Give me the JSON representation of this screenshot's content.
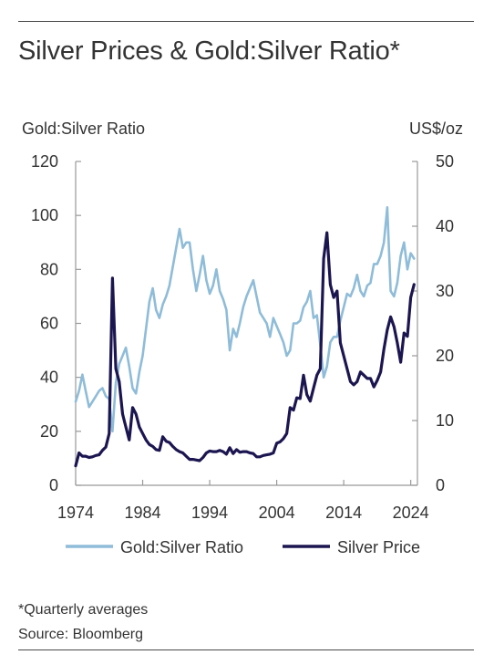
{
  "header": {
    "title": "Silver Prices & Gold:Silver Ratio*"
  },
  "footer": {
    "note": "*Quarterly averages",
    "source": "Source: Bloomberg"
  },
  "colors": {
    "ratio": "#8fbcd8",
    "price": "#1c1650",
    "axis": "#999999",
    "text": "#333333"
  },
  "chart_data": {
    "type": "line",
    "title": "Silver Prices & Gold:Silver Ratio*",
    "left_axis": {
      "label": "Gold:Silver Ratio",
      "range": [
        0,
        120
      ],
      "ticks": [
        "0",
        "20",
        "40",
        "60",
        "80",
        "100",
        "120"
      ]
    },
    "right_axis": {
      "label": "US$/oz",
      "range": [
        0,
        50
      ],
      "ticks": [
        "0",
        "10",
        "20",
        "30",
        "40",
        "50"
      ]
    },
    "x_axis": {
      "range": [
        1974,
        2025
      ],
      "ticks": [
        "1974",
        "1984",
        "1994",
        "2004",
        "2014",
        "2024"
      ]
    },
    "grid": false,
    "legend": {
      "placement": "bottom",
      "entries": [
        "Gold:Silver Ratio",
        "Silver Price"
      ]
    },
    "series": [
      {
        "name": "Gold:Silver Ratio",
        "axis": "left",
        "x": [
          1974,
          1974.5,
          1975,
          1975.5,
          1976,
          1976.5,
          1977,
          1977.5,
          1978,
          1978.5,
          1979,
          1979.5,
          1980,
          1980.5,
          1981,
          1981.5,
          1982,
          1982.5,
          1983,
          1983.5,
          1984,
          1984.5,
          1985,
          1985.5,
          1986,
          1986.5,
          1987,
          1987.5,
          1988,
          1988.5,
          1989,
          1989.5,
          1990,
          1990.5,
          1991,
          1991.5,
          1992,
          1992.5,
          1993,
          1993.5,
          1994,
          1994.5,
          1995,
          1995.5,
          1996,
          1996.5,
          1997,
          1997.5,
          1998,
          1998.5,
          1999,
          1999.5,
          2000,
          2000.5,
          2001,
          2001.5,
          2002,
          2002.5,
          2003,
          2003.5,
          2004,
          2004.5,
          2005,
          2005.5,
          2006,
          2006.5,
          2007,
          2007.5,
          2008,
          2008.5,
          2009,
          2009.5,
          2010,
          2010.5,
          2011,
          2011.5,
          2012,
          2012.5,
          2013,
          2013.5,
          2014,
          2014.5,
          2015,
          2015.5,
          2016,
          2016.5,
          2017,
          2017.5,
          2018,
          2018.5,
          2019,
          2019.5,
          2020,
          2020.5,
          2021,
          2021.5,
          2022,
          2022.5,
          2023,
          2023.5,
          2024,
          2024.5
        ],
        "values": [
          31,
          35,
          41,
          35,
          29,
          31,
          33,
          35,
          36,
          33,
          32,
          20,
          38,
          45,
          48,
          51,
          44,
          36,
          34,
          42,
          48,
          58,
          68,
          73,
          65,
          62,
          67,
          70,
          74,
          81,
          88,
          95,
          88,
          90,
          90,
          80,
          72,
          78,
          85,
          76,
          71,
          74,
          80,
          72,
          69,
          65,
          50,
          58,
          55,
          60,
          66,
          70,
          73,
          76,
          70,
          64,
          62,
          60,
          55,
          62,
          59,
          56,
          53,
          48,
          50,
          60,
          60,
          61,
          66,
          68,
          72,
          62,
          63,
          52,
          40,
          44,
          53,
          55,
          55,
          61,
          66,
          71,
          70,
          73,
          78,
          72,
          70,
          74,
          75,
          82,
          82,
          85,
          90,
          103,
          72,
          70,
          75,
          85,
          90,
          80,
          86,
          84
        ]
      },
      {
        "name": "Silver Price",
        "axis": "right",
        "x": [
          1974,
          1974.5,
          1975,
          1975.5,
          1976,
          1976.5,
          1977,
          1977.5,
          1978,
          1978.5,
          1979,
          1979.5,
          1980,
          1980.5,
          1981,
          1981.5,
          1982,
          1982.5,
          1983,
          1983.5,
          1984,
          1984.5,
          1985,
          1985.5,
          1986,
          1986.5,
          1987,
          1987.5,
          1988,
          1988.5,
          1989,
          1989.5,
          1990,
          1990.5,
          1991,
          1991.5,
          1992,
          1992.5,
          1993,
          1993.5,
          1994,
          1994.5,
          1995,
          1995.5,
          1996,
          1996.5,
          1997,
          1997.5,
          1998,
          1998.5,
          1999,
          1999.5,
          2000,
          2000.5,
          2001,
          2001.5,
          2002,
          2002.5,
          2003,
          2003.5,
          2004,
          2004.5,
          2005,
          2005.5,
          2006,
          2006.5,
          2007,
          2007.5,
          2008,
          2008.5,
          2009,
          2009.5,
          2010,
          2010.5,
          2011,
          2011.5,
          2012,
          2012.5,
          2013,
          2013.5,
          2014,
          2014.5,
          2015,
          2015.5,
          2016,
          2016.5,
          2017,
          2017.5,
          2018,
          2018.5,
          2019,
          2019.5,
          2020,
          2020.5,
          2021,
          2021.5,
          2022,
          2022.5,
          2023,
          2023.5,
          2024,
          2024.5
        ],
        "values": [
          3,
          5,
          4.5,
          4.5,
          4.3,
          4.4,
          4.6,
          4.7,
          5.4,
          5.9,
          8,
          32,
          18,
          16,
          11,
          9,
          7,
          12,
          11,
          9,
          8,
          7,
          6.3,
          6,
          5.5,
          5.4,
          7.5,
          6.8,
          6.6,
          6,
          5.5,
          5.2,
          5,
          4.5,
          4,
          4,
          3.9,
          3.8,
          4.3,
          5,
          5.3,
          5.2,
          5.2,
          5.4,
          5.2,
          4.8,
          5.8,
          4.9,
          5.5,
          5.1,
          5.2,
          5.2,
          5,
          4.9,
          4.4,
          4.4,
          4.6,
          4.7,
          4.8,
          5,
          6.5,
          6.7,
          7.2,
          8,
          12,
          11.6,
          13.5,
          13.4,
          17,
          14,
          13,
          15,
          17,
          18,
          35,
          39,
          31,
          29,
          30,
          22,
          20,
          18,
          16,
          15.5,
          16,
          17.5,
          17,
          16.5,
          16.5,
          15.2,
          16.2,
          17.5,
          21,
          24,
          26,
          24.5,
          22,
          19,
          23.5,
          23,
          29,
          31
        ]
      }
    ]
  }
}
